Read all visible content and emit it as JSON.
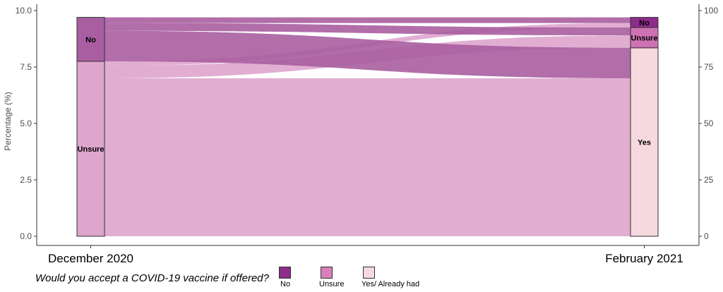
{
  "chart_data": {
    "type": "alluvial",
    "x_categories": [
      "December 2020",
      "February 2021"
    ],
    "ylabel": "Percentage (%)",
    "ylim_left": [
      0,
      10
    ],
    "yticks_left": [
      "0.0",
      "2.5",
      "5.0",
      "7.5",
      "10.0"
    ],
    "ylim_right": [
      0,
      100
    ],
    "yticks_right": [
      "0",
      "25",
      "50",
      "75",
      "100"
    ],
    "grid": false,
    "legend_position": "bottom",
    "legend_title": "Would you accept a COVID-19 vaccine if offered?",
    "legend": [
      {
        "label": "No",
        "color": "#8e2c8a"
      },
      {
        "label": "Unsure",
        "color": "#d67fbb"
      },
      {
        "label": "Yes/ Already had",
        "color": "#f6d9de"
      }
    ],
    "strata": {
      "December 2020": [
        {
          "label": "Unsure",
          "from": 0,
          "to": 7.75,
          "color": "#dea5cd"
        },
        {
          "label": "No",
          "from": 7.75,
          "to": 9.7,
          "color": "#a85ea0"
        }
      ],
      "February 2021": [
        {
          "label": "Yes",
          "from": 0,
          "to": 8.35,
          "color": "#f6d9de"
        },
        {
          "label": "Unsure",
          "from": 8.35,
          "to": 9.25,
          "color": "#cf72b4"
        },
        {
          "label": "No",
          "from": 9.25,
          "to": 9.7,
          "color": "#8e2c8a"
        }
      ]
    },
    "flows": [
      {
        "from": "Unsure",
        "to": "Yes",
        "value": 7.0
      },
      {
        "from": "Unsure",
        "to": "Unsure",
        "value": 0.55
      },
      {
        "from": "Unsure",
        "to": "No",
        "value": 0.2
      },
      {
        "from": "No",
        "to": "Yes",
        "value": 1.35
      },
      {
        "from": "No",
        "to": "Unsure",
        "value": 0.35
      },
      {
        "from": "No",
        "to": "No",
        "value": 0.25
      }
    ]
  }
}
